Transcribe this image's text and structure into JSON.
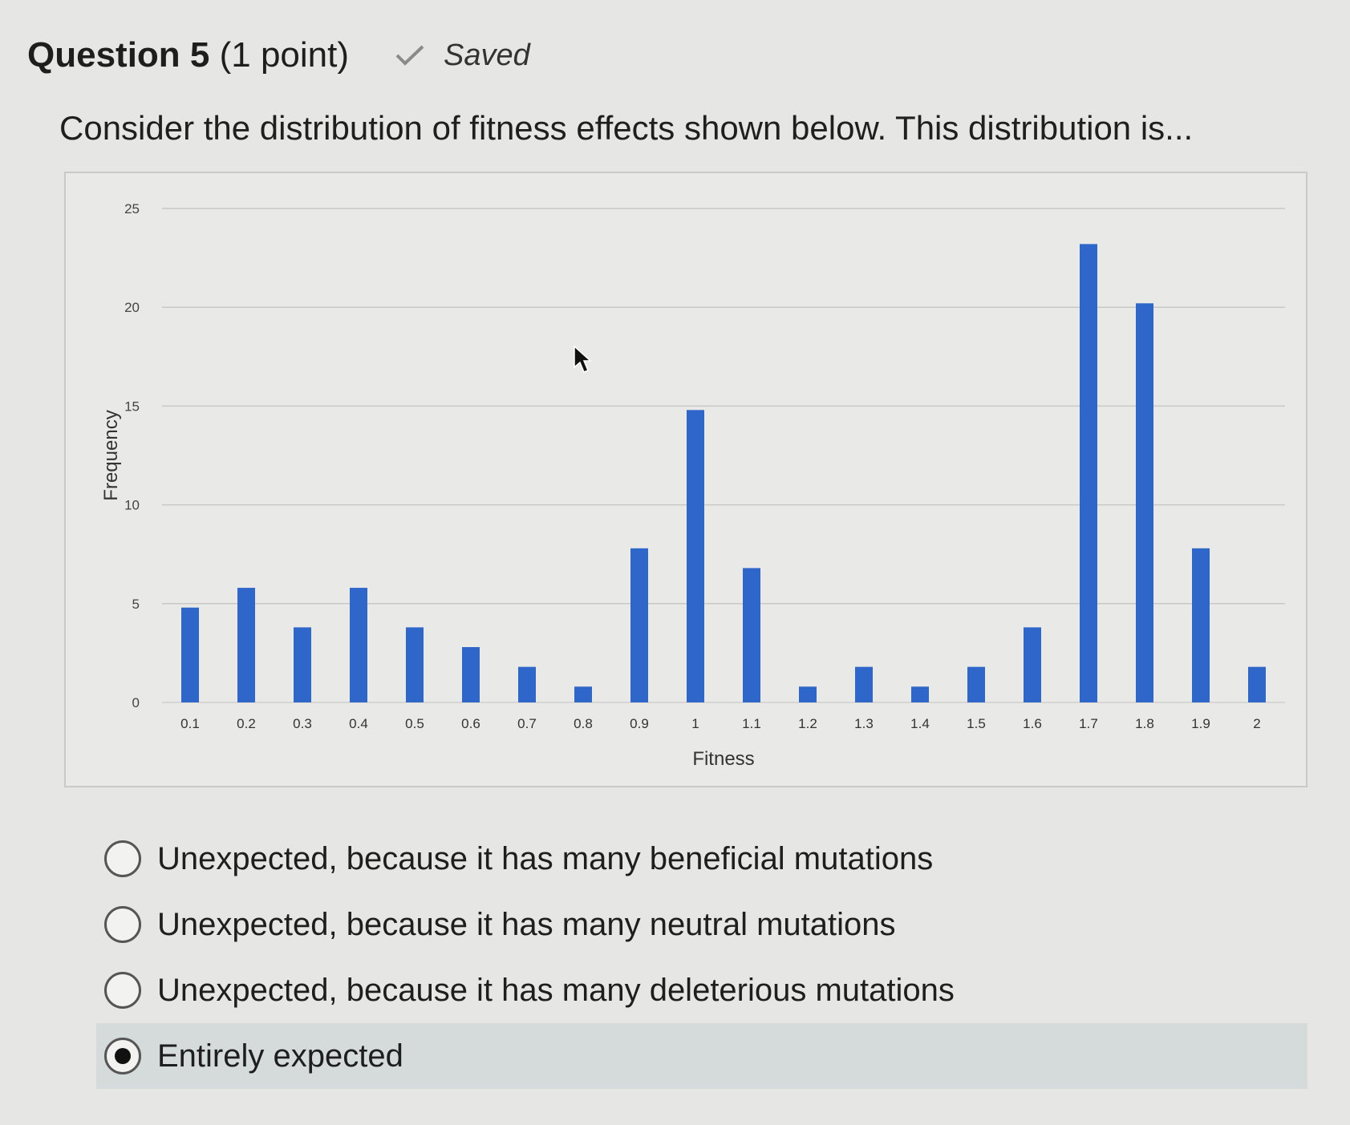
{
  "question": {
    "title": "Question 5",
    "points": "(1 point)",
    "status": "Saved",
    "prompt": "Consider the distribution of fitness effects shown below. This distribution is..."
  },
  "chart_data": {
    "type": "bar",
    "categories": [
      "0.1",
      "0.2",
      "0.3",
      "0.4",
      "0.5",
      "0.6",
      "0.7",
      "0.8",
      "0.9",
      "1",
      "1.1",
      "1.2",
      "1.3",
      "1.4",
      "1.5",
      "1.6",
      "1.7",
      "1.8",
      "1.9",
      "2"
    ],
    "values": [
      4.8,
      5.8,
      3.8,
      5.8,
      3.8,
      2.8,
      1.8,
      0.8,
      7.8,
      14.8,
      6.8,
      0.8,
      1.8,
      0.8,
      1.8,
      3.8,
      23.2,
      20.2,
      7.8,
      1.8
    ],
    "xlabel": "Fitness",
    "ylabel": "Frequency",
    "yticks": [
      "0",
      "5",
      "10",
      "15",
      "20",
      "25"
    ],
    "ylim": [
      0,
      25
    ],
    "grid": true,
    "bar_color": "#2f66c9"
  },
  "options": [
    {
      "label": "Unexpected, because it has many beneficial mutations",
      "selected": false
    },
    {
      "label": "Unexpected, because it has many neutral mutations",
      "selected": false
    },
    {
      "label": "Unexpected, because it has many deleterious mutations",
      "selected": false
    },
    {
      "label": "Entirely expected",
      "selected": true
    }
  ],
  "icons": {
    "check": "check-icon",
    "cursor": "cursor-icon"
  }
}
